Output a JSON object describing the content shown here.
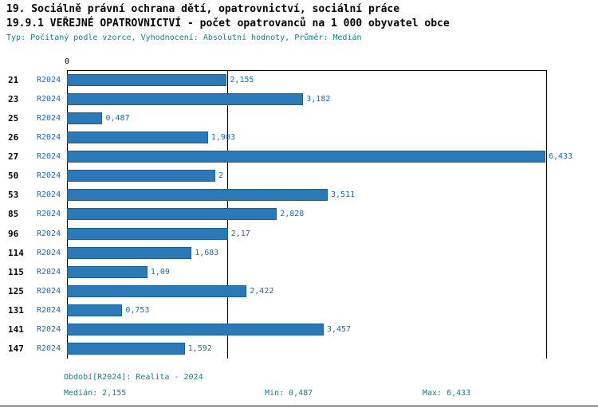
{
  "header": {
    "title1": "19. Sociálně právní ochrana dětí, opatrovnictví, sociální práce",
    "title2": "19.9.1 VEŘEJNÉ OPATROVNICTVÍ - počet opatrovanců na 1 000 obyvatel obce",
    "subtitle": "Typ: Počítaný podle vzorce, Vyhodnocení: Absolutní hodnoty, Průměr: Medián"
  },
  "chart_data": {
    "type": "bar",
    "orientation": "horizontal",
    "title": "19.9.1 VEŘEJNÉ OPATROVNICTVÍ - počet opatrovanců na 1 000 obyvatel obce",
    "series_label": "R2024",
    "categories": [
      "21",
      "23",
      "25",
      "26",
      "27",
      "50",
      "53",
      "85",
      "96",
      "114",
      "115",
      "125",
      "131",
      "141",
      "147"
    ],
    "values": [
      2.155,
      3.182,
      0.487,
      1.903,
      6.433,
      2,
      3.511,
      2.828,
      2.17,
      1.683,
      1.09,
      2.422,
      0.753,
      3.457,
      1.592
    ],
    "value_labels": [
      "2,155",
      "3,182",
      "0,487",
      "1,903",
      "6,433",
      "2",
      "3,511",
      "2,828",
      "2,17",
      "1,683",
      "1,09",
      "2,422",
      "0,753",
      "3,457",
      "1,592"
    ],
    "xlim": [
      0,
      6.433
    ],
    "x_axis_zero_label": "0",
    "median": 2.155,
    "grid": false,
    "legend_position": "none",
    "bar_color": "#2c79b8",
    "bar_border_color": "#1b5e94"
  },
  "footer": {
    "period": "Období[R2024]: Realita - 2024",
    "median": "Medián: 2,155",
    "min": "Min: 0,487",
    "max": "Max: 6,433"
  },
  "colors": {
    "value_text_blue": "#2066bb",
    "teal_text": "#0e8290",
    "axis_black": "#000000"
  }
}
